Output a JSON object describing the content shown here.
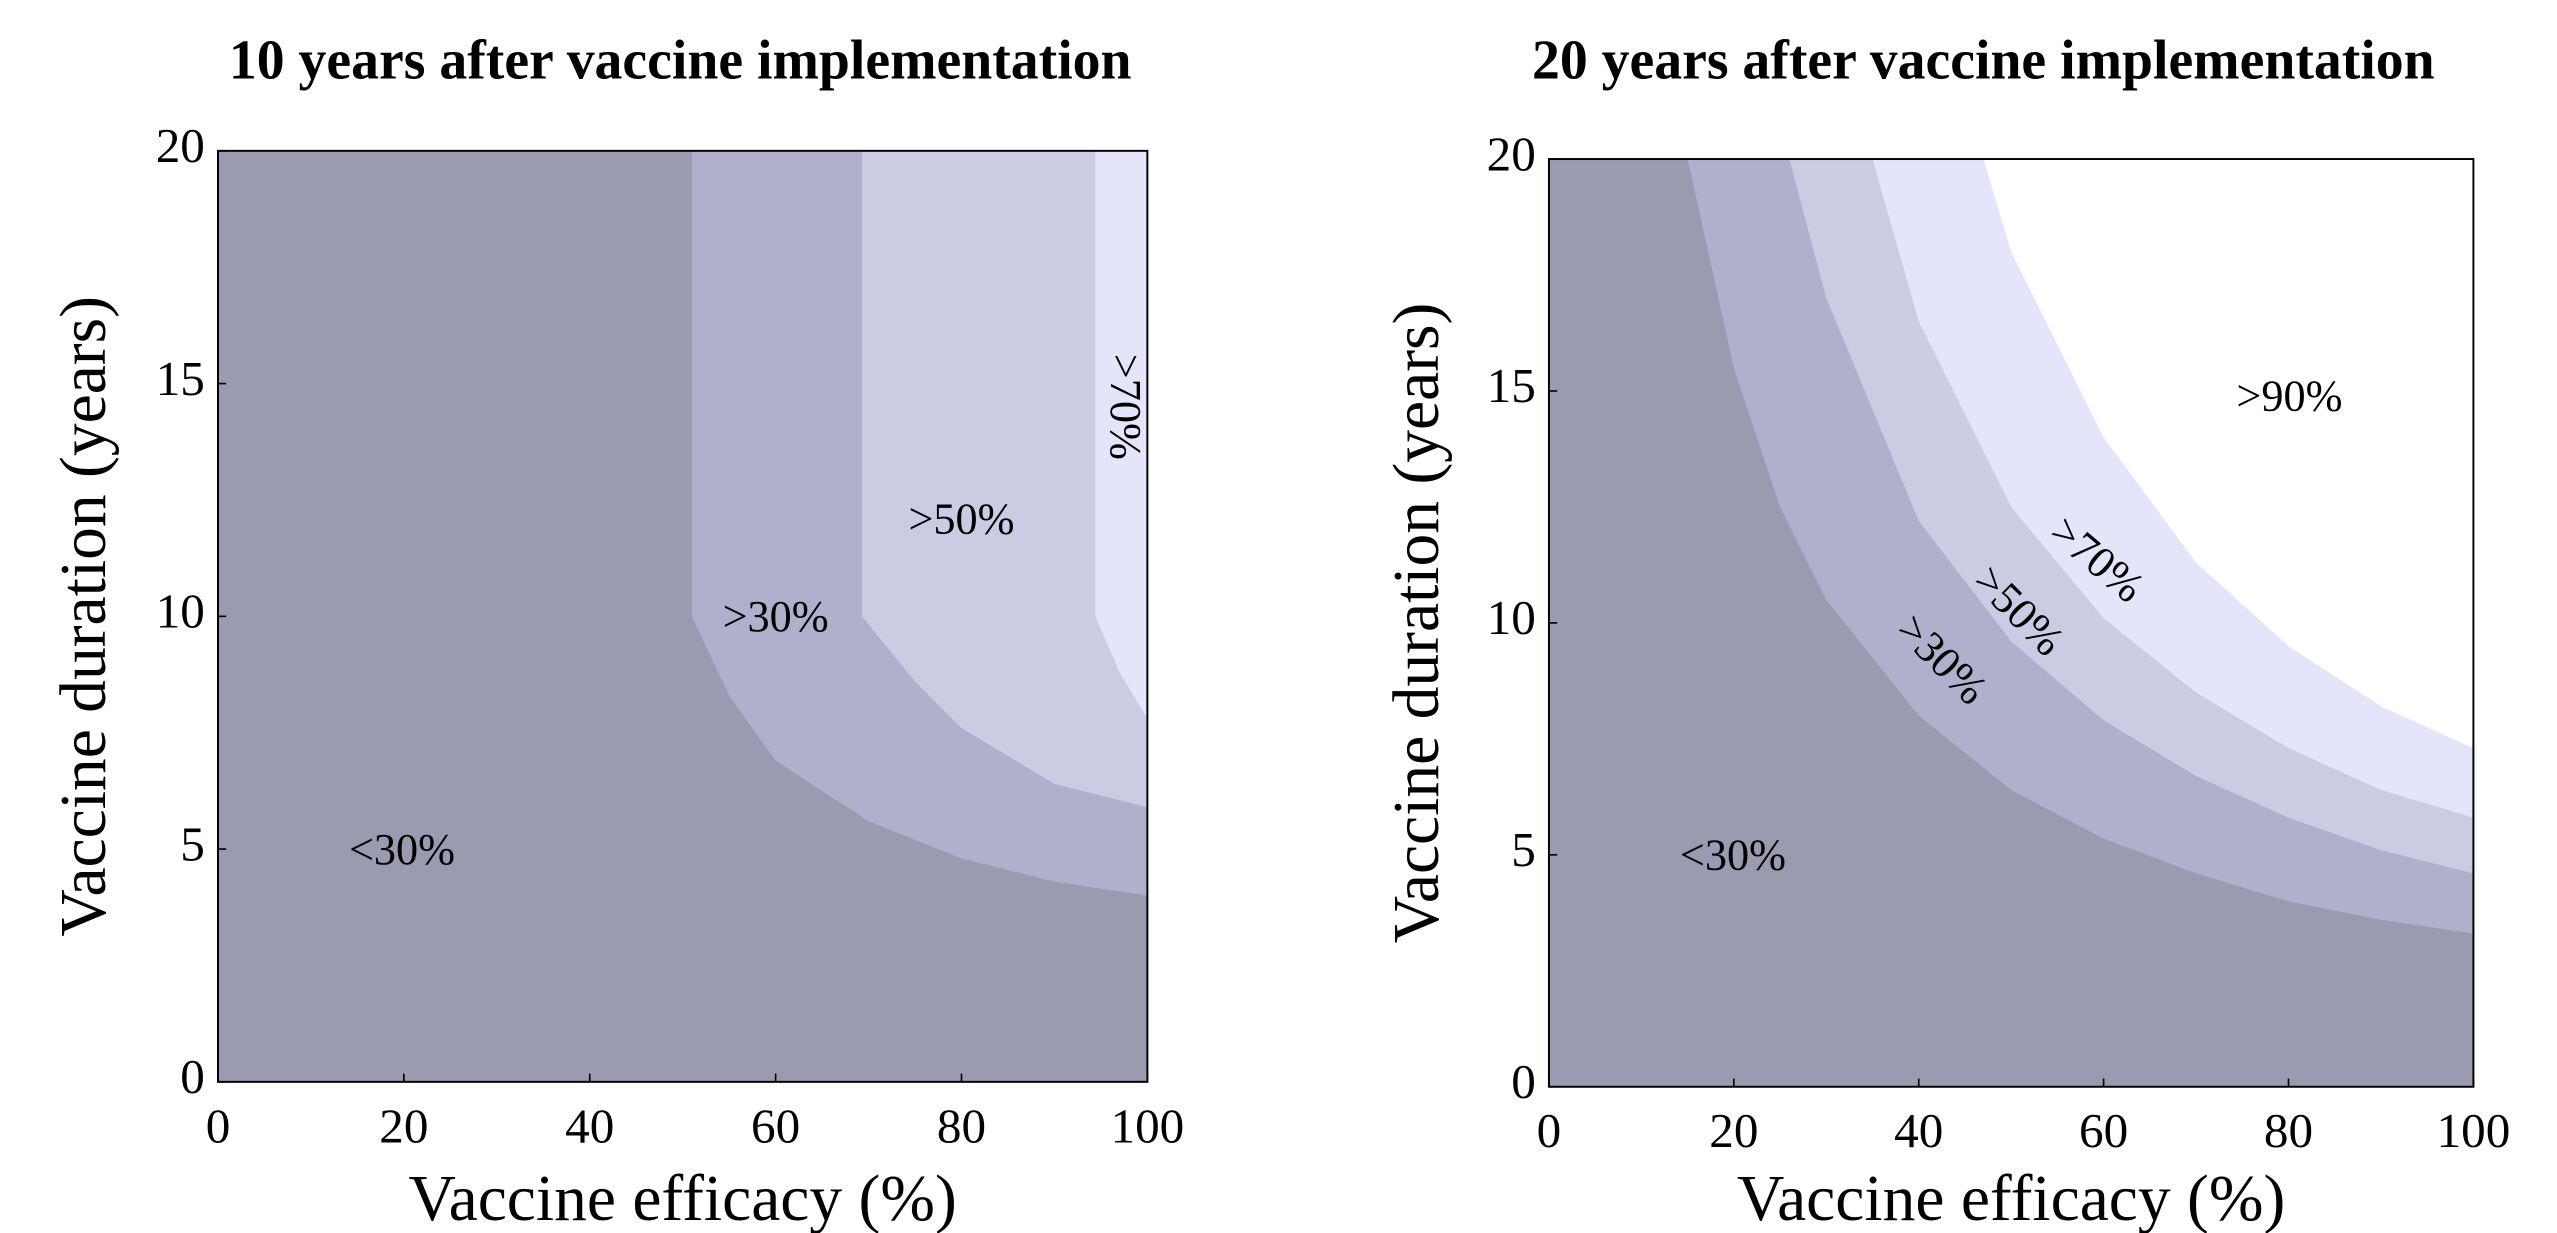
{
  "chart_data": [
    {
      "type": "contour",
      "title": "10 years after vaccine implementation",
      "x_label": "Vaccine efficacy (%)",
      "y_label": "Vaccine duration (years)",
      "xlim": [
        0,
        100
      ],
      "ylim": [
        0,
        20
      ],
      "xticks": [
        0,
        20,
        40,
        60,
        80,
        100
      ],
      "yticks": [
        0,
        5,
        10,
        15,
        20
      ],
      "base_region": {
        "name": "<30%",
        "color": "#9a9ab0"
      },
      "series": [
        {
          "name": ">30%",
          "color": "#b0b0cc",
          "x": [
            51,
            51,
            55,
            60,
            70,
            80,
            90,
            100
          ],
          "values": [
            20,
            10,
            8.3,
            6.9,
            5.6,
            4.8,
            4.3,
            4.0
          ]
        },
        {
          "name": ">50%",
          "color": "#cbcbe3",
          "x": [
            69.3,
            69.3,
            75,
            80,
            90,
            100
          ],
          "values": [
            20,
            10,
            8.6,
            7.6,
            6.4,
            5.9
          ]
        },
        {
          "name": ">70%",
          "color": "#e4e4fb",
          "x": [
            94.4,
            94.4,
            97,
            100
          ],
          "values": [
            20,
            10,
            8.8,
            7.8
          ]
        }
      ]
    },
    {
      "type": "contour",
      "title": "20 years after vaccine implementation",
      "x_label": "Vaccine efficacy (%)",
      "y_label": "Vaccine duration (years)",
      "xlim": [
        0,
        100
      ],
      "ylim": [
        0,
        20
      ],
      "xticks": [
        0,
        20,
        40,
        60,
        80,
        100
      ],
      "yticks": [
        0,
        5,
        10,
        15,
        20
      ],
      "base_region": {
        "name": "<30%",
        "color": "#9a9ab0"
      },
      "series": [
        {
          "name": ">30%",
          "color": "#b0b0cc",
          "x": [
            15,
            20,
            25,
            30,
            40,
            50,
            60,
            70,
            80,
            90,
            100
          ],
          "values": [
            20,
            15.5,
            12.5,
            10.5,
            8,
            6.4,
            5.35,
            4.6,
            4.0,
            3.6,
            3.3
          ]
        },
        {
          "name": ">50%",
          "color": "#cbcbe3",
          "x": [
            26,
            30,
            40,
            50,
            60,
            70,
            80,
            90,
            100
          ],
          "values": [
            20,
            17,
            12.2,
            9.6,
            7.9,
            6.7,
            5.8,
            5.1,
            4.6
          ]
        },
        {
          "name": ">70%",
          "color": "#e4e4fb",
          "x": [
            35,
            40,
            50,
            60,
            70,
            80,
            90,
            100
          ],
          "values": [
            20,
            16.5,
            12.5,
            10.1,
            8.5,
            7.3,
            6.4,
            5.8
          ]
        },
        {
          "name": ">90%",
          "color": "#ffffff",
          "x": [
            47,
            50,
            60,
            70,
            80,
            90,
            100
          ],
          "values": [
            20,
            18,
            14,
            11.3,
            9.5,
            8.2,
            7.3
          ]
        }
      ]
    }
  ]
}
